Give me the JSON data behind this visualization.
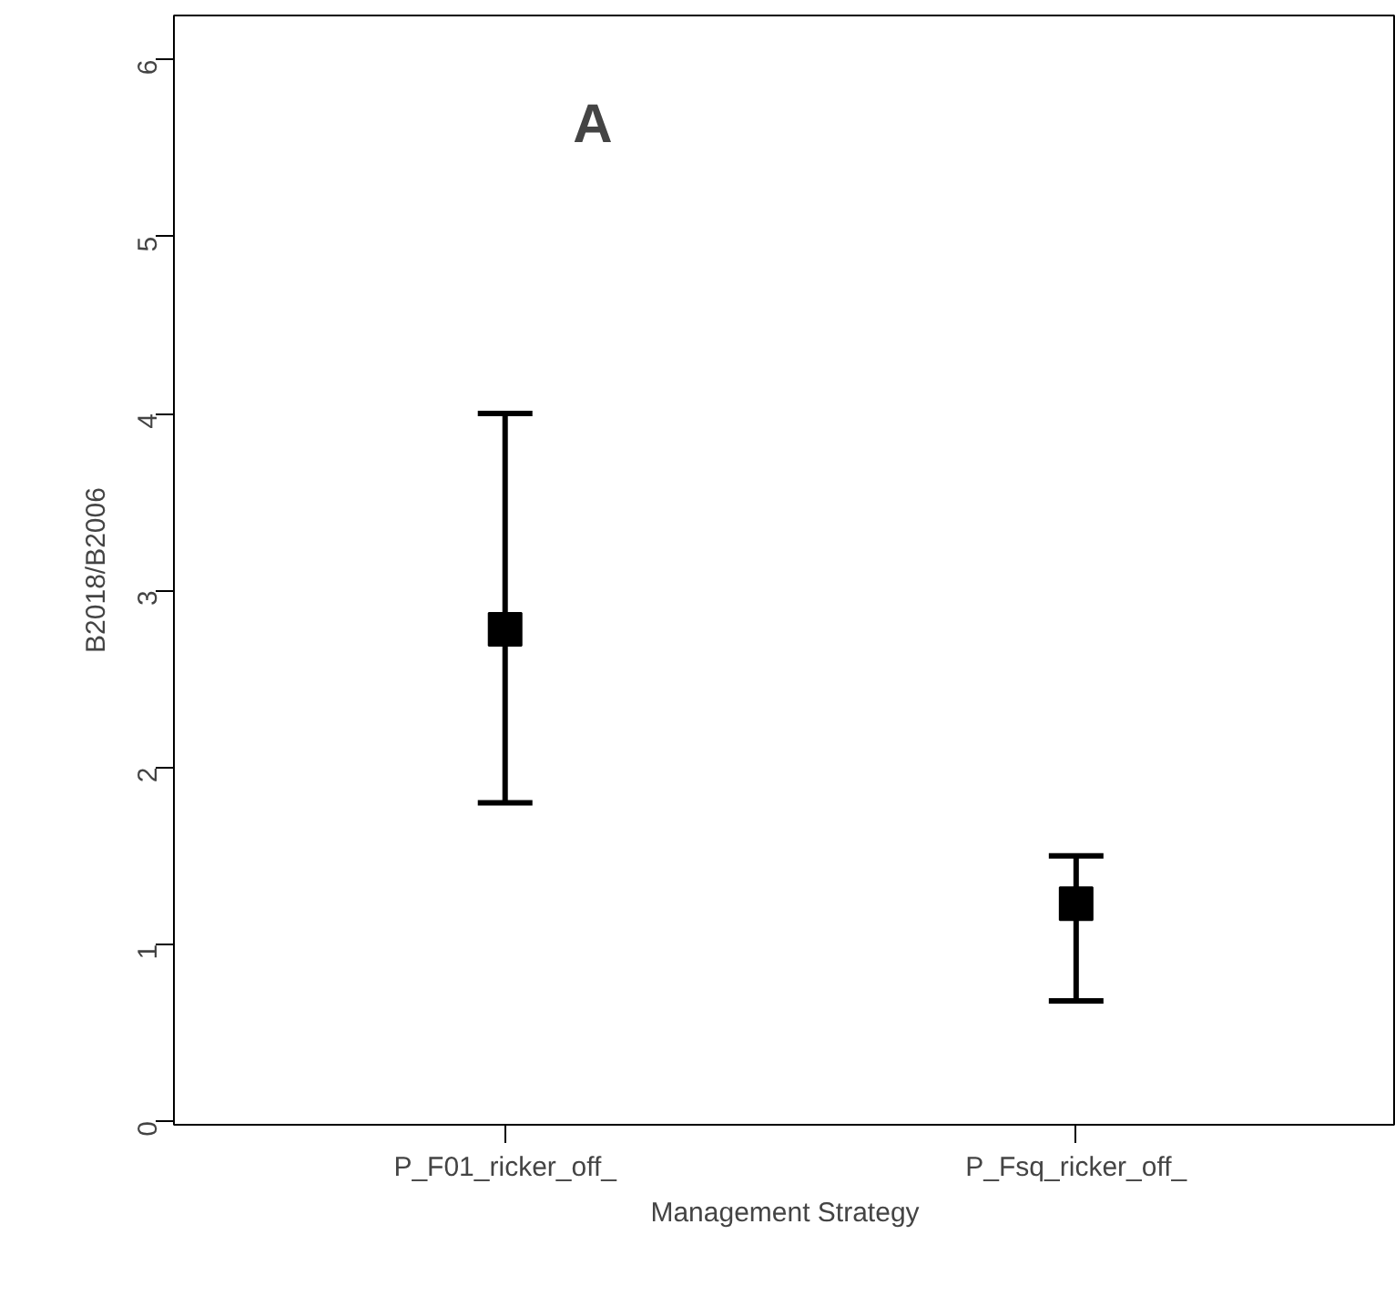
{
  "chart_data": {
    "type": "scatter",
    "xlabel": "Management Strategy",
    "ylabel": "B2018/B2006",
    "annotations": [
      "A"
    ],
    "categories": [
      "P_F01_ricker_off_",
      "P_Fsq_ricker_off_"
    ],
    "series": [
      {
        "color": "#000000",
        "values": [
          2.78,
          1.23
        ],
        "errors": [
          [
            1.8,
            4.0
          ],
          [
            0.68,
            1.5
          ]
        ]
      }
    ],
    "marker": "square",
    "ylim": [
      -0.02,
      6.25
    ],
    "yticks": [
      0,
      1,
      2,
      3,
      4,
      5,
      6
    ],
    "grid": false
  }
}
